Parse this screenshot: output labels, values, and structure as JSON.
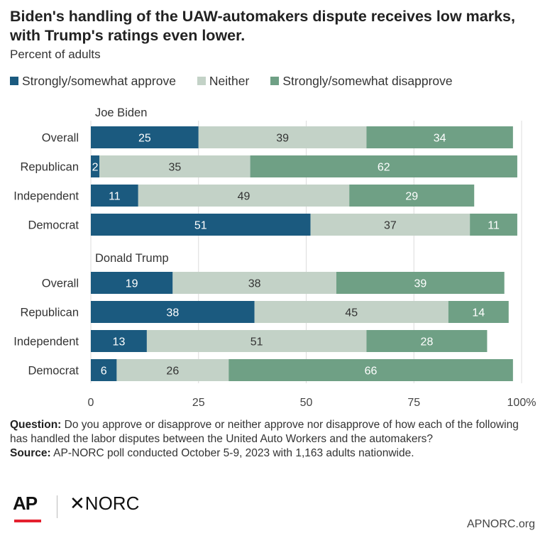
{
  "title": "Biden's handling of the UAW-automakers dispute receives low marks, with Trump's ratings even lower.",
  "subtitle": "Percent of adults",
  "legend": [
    {
      "label": "Strongly/somewhat approve",
      "color": "#1b5a7f"
    },
    {
      "label": "Neither",
      "color": "#c3d2c7"
    },
    {
      "label": "Strongly/somewhat disapprove",
      "color": "#6fa085"
    }
  ],
  "chart_data": {
    "type": "bar",
    "orientation": "horizontal",
    "stacked": true,
    "xlim": [
      0,
      100
    ],
    "xticks": [
      "0",
      "25",
      "50",
      "75",
      "100%"
    ],
    "series_names": [
      "Strongly/somewhat approve",
      "Neither",
      "Strongly/somewhat disapprove"
    ],
    "groups": [
      {
        "name": "Joe Biden",
        "rows": [
          {
            "label": "Overall",
            "values": [
              25,
              39,
              34
            ]
          },
          {
            "label": "Republican",
            "values": [
              2,
              35,
              62
            ]
          },
          {
            "label": "Independent",
            "values": [
              11,
              49,
              29
            ]
          },
          {
            "label": "Democrat",
            "values": [
              51,
              37,
              11
            ]
          }
        ]
      },
      {
        "name": "Donald Trump",
        "rows": [
          {
            "label": "Overall",
            "values": [
              19,
              38,
              39
            ]
          },
          {
            "label": "Republican",
            "values": [
              38,
              45,
              14
            ]
          },
          {
            "label": "Independent",
            "values": [
              13,
              51,
              28
            ]
          },
          {
            "label": "Democrat",
            "values": [
              6,
              26,
              66
            ]
          }
        ]
      }
    ]
  },
  "footnote": {
    "question_label": "Question:",
    "question_text": " Do you approve or disapprove or neither approve nor disapprove of how each of the following has handled the labor disputes between the United Auto Workers and the automakers?",
    "source_label": "Source:",
    "source_text": " AP-NORC poll conducted October 5-9, 2023 with 1,163 adults nationwide."
  },
  "logos": {
    "ap": "AP",
    "norc_mark": "✕",
    "norc": "NORC"
  },
  "site": "APNORC.org"
}
